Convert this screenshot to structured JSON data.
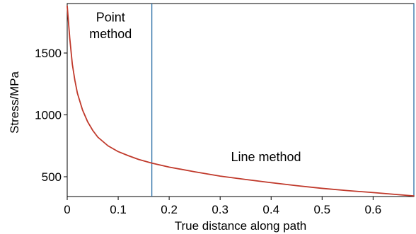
{
  "chart_data": {
    "type": "line",
    "title": "",
    "xlabel": "True distance along path",
    "ylabel": "Stress/MPa",
    "xlim": [
      0,
      0.68
    ],
    "ylim": [
      340,
      1900
    ],
    "x_ticks": [
      0,
      0.1,
      0.2,
      0.3,
      0.4,
      0.5,
      0.6
    ],
    "x_tick_labels": [
      "0",
      "0.1",
      "0.2",
      "0.3",
      "0.4",
      "0.5",
      "0.6"
    ],
    "y_ticks": [
      500,
      1000,
      1500
    ],
    "y_tick_labels": [
      "500",
      "1000",
      "1500"
    ],
    "grid": false,
    "series": [
      {
        "color": "#c0392b",
        "x": [
          0,
          0.005,
          0.01,
          0.015,
          0.02,
          0.03,
          0.04,
          0.05,
          0.06,
          0.08,
          0.1,
          0.12,
          0.14,
          0.166,
          0.2,
          0.25,
          0.3,
          0.35,
          0.4,
          0.45,
          0.5,
          0.55,
          0.6,
          0.65,
          0.68
        ],
        "y": [
          1880,
          1620,
          1410,
          1280,
          1175,
          1040,
          945,
          875,
          820,
          750,
          703,
          670,
          640,
          610,
          578,
          540,
          505,
          478,
          452,
          428,
          406,
          388,
          372,
          355,
          345
        ]
      }
    ],
    "vertical_lines": [
      {
        "x": 0.166,
        "color": "#2b6fa6"
      },
      {
        "x": 0.68,
        "color": "#2b6fa6"
      }
    ],
    "annotations": [
      {
        "text": "Point",
        "x": 0.085,
        "y": 1755
      },
      {
        "text": "method",
        "x": 0.085,
        "y": 1620
      },
      {
        "text": "Line method",
        "x": 0.39,
        "y": 625
      }
    ]
  }
}
